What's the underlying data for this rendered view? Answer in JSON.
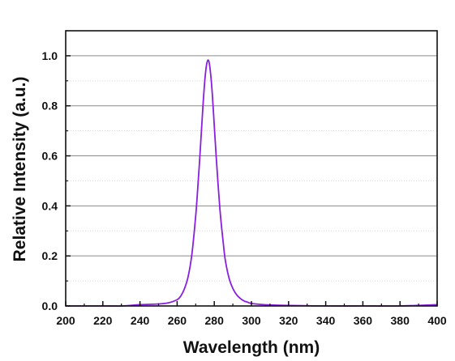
{
  "chart_data": {
    "type": "line",
    "title": "",
    "xlabel": "Wavelength (nm)",
    "ylabel": "Relative Intensity (a.u.)",
    "xlim": [
      200,
      400
    ],
    "ylim": [
      0,
      1.1
    ],
    "x_ticks": [
      200,
      220,
      240,
      260,
      280,
      300,
      320,
      340,
      360,
      380,
      400
    ],
    "x_tick_labels": [
      "200",
      "220",
      "240",
      "260",
      "280",
      "300",
      "320",
      "340",
      "360",
      "380",
      "400"
    ],
    "y_ticks": [
      0.0,
      0.2,
      0.4,
      0.6,
      0.8,
      1.0
    ],
    "y_tick_labels": [
      "0.0",
      "0.2",
      "0.4",
      "0.6",
      "0.8",
      "1.0"
    ],
    "grid": {
      "major_y": true,
      "minor_y": true,
      "x": false,
      "major_color": "#8a8a8a",
      "minor_color": "#d6d6d6"
    },
    "legend": "none",
    "series": [
      {
        "color": "#8a1fe0",
        "x": [
          200,
          210,
          220,
          230,
          240,
          250,
          255,
          260,
          262,
          264,
          266,
          268,
          270,
          271,
          272,
          273,
          274,
          275,
          276,
          277,
          278,
          279,
          280,
          281,
          282,
          283,
          284,
          285,
          286,
          288,
          290,
          292,
          294,
          296,
          298,
          300,
          305,
          310,
          320,
          340,
          360,
          380,
          400
        ],
        "y": [
          0.0,
          0.0,
          0.0,
          0.0,
          0.005,
          0.008,
          0.012,
          0.025,
          0.04,
          0.07,
          0.12,
          0.21,
          0.36,
          0.46,
          0.57,
          0.69,
          0.81,
          0.91,
          0.97,
          0.98,
          0.93,
          0.84,
          0.72,
          0.6,
          0.49,
          0.39,
          0.31,
          0.24,
          0.18,
          0.11,
          0.07,
          0.045,
          0.03,
          0.02,
          0.015,
          0.01,
          0.006,
          0.004,
          0.002,
          0.0,
          0.0,
          0.0,
          0.005
        ]
      }
    ]
  }
}
